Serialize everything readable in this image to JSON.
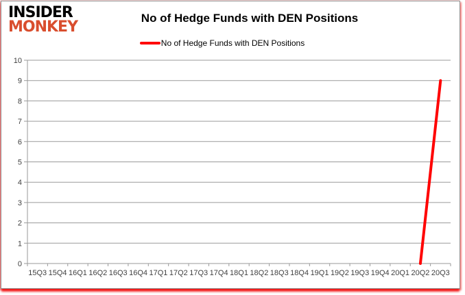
{
  "brand": {
    "line1": "INSIDER",
    "line2": "MONKEY",
    "line1_color": "#000000",
    "line2_color": "#d94e2e"
  },
  "header": {
    "title": "No of Hedge Funds with DEN Positions"
  },
  "legend": {
    "label": "No of Hedge Funds with DEN Positions",
    "swatch_color": "#ff0000"
  },
  "chart_data": {
    "type": "line",
    "title": "No of Hedge Funds with DEN Positions",
    "categories": [
      "15Q3",
      "15Q4",
      "16Q1",
      "16Q2",
      "16Q3",
      "16Q4",
      "17Q1",
      "17Q2",
      "17Q3",
      "17Q4",
      "18Q1",
      "18Q2",
      "18Q3",
      "18Q4",
      "19Q1",
      "19Q2",
      "19Q3",
      "19Q4",
      "20Q1",
      "20Q2",
      "20Q3"
    ],
    "series": [
      {
        "name": "No of Hedge Funds with DEN Positions",
        "color": "#ff0000",
        "values": [
          null,
          null,
          null,
          null,
          null,
          null,
          null,
          null,
          null,
          null,
          null,
          null,
          null,
          null,
          null,
          null,
          null,
          null,
          null,
          0,
          9
        ]
      }
    ],
    "ylim": [
      0,
      10
    ],
    "yticks": [
      0,
      1,
      2,
      3,
      4,
      5,
      6,
      7,
      8,
      9,
      10
    ],
    "xlabel": "",
    "ylabel": "",
    "grid": true,
    "legend_position": "top-center",
    "axis_color": "#9a9a9a",
    "label_color": "#3f3f3f"
  }
}
